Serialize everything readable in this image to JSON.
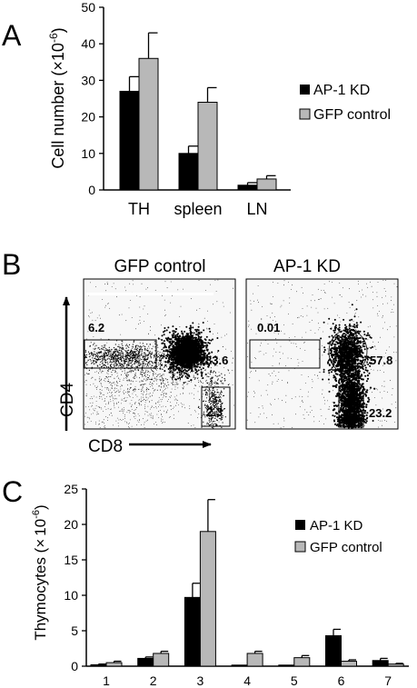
{
  "panels": {
    "a": {
      "letter": "A"
    },
    "b": {
      "letter": "B"
    },
    "c": {
      "letter": "C"
    }
  },
  "colors": {
    "kd": "#000000",
    "gfp": "#b8b8b8",
    "dot": "#000000",
    "plot_bg": "#f7f7f7"
  },
  "chart_data": [
    {
      "id": "panel-a",
      "type": "bar",
      "ylabel_main": "Cell number (",
      "ylabel_times": "×",
      "ylabel_unit": "10",
      "ylabel_exp": "-6",
      "ylabel_close": ")",
      "ylim": [
        0,
        50
      ],
      "yticks": [
        "0",
        "10",
        "20",
        "30",
        "40",
        "50"
      ],
      "categories": [
        "TH",
        "spleen",
        "LN"
      ],
      "series": [
        {
          "name": "AP-1 KD",
          "color": "#000000",
          "values": [
            27,
            10,
            1.3
          ],
          "errors": [
            4,
            2,
            0.7
          ]
        },
        {
          "name": "GFP control",
          "color": "#b8b8b8",
          "values": [
            36,
            24,
            3
          ],
          "errors": [
            7,
            4,
            0.9
          ]
        }
      ],
      "legend_position": "right",
      "grid": false
    },
    {
      "id": "panel-b",
      "type": "scatter",
      "subtype": "flow-cytometry",
      "xlabel": "CD8",
      "ylabel": "CD4",
      "plots": [
        {
          "title": "GFP control",
          "gates": [
            "6.2",
            "83.6",
            "2.3"
          ]
        },
        {
          "title": "AP-1 KD",
          "gates": [
            "0.01",
            "57.8",
            "23.2"
          ]
        }
      ]
    },
    {
      "id": "panel-c",
      "type": "bar",
      "ylabel_main": "Thymocytes (",
      "ylabel_times": "×",
      "ylabel_unit": "10",
      "ylabel_exp": "-6",
      "ylabel_close": ")",
      "ylim": [
        0,
        25
      ],
      "yticks": [
        "0",
        "5",
        "10",
        "15",
        "20",
        "25"
      ],
      "categories": [
        "1",
        "2",
        "3",
        "4",
        "5",
        "6",
        "7"
      ],
      "series": [
        {
          "name": "AP-1 KD",
          "color": "#000000",
          "values": [
            0.2,
            1.1,
            9.7,
            0.05,
            0.05,
            4.3,
            0.8
          ],
          "errors": [
            0.1,
            0.2,
            2.0,
            0.05,
            0.05,
            0.9,
            0.3
          ]
        },
        {
          "name": "GFP control",
          "color": "#b8b8b8",
          "values": [
            0.5,
            1.8,
            19,
            1.8,
            1.2,
            0.7,
            0.3
          ],
          "errors": [
            0.2,
            0.3,
            4.5,
            0.3,
            0.3,
            0.2,
            0.1
          ]
        }
      ],
      "legend_position": "top-right",
      "grid": false
    }
  ]
}
